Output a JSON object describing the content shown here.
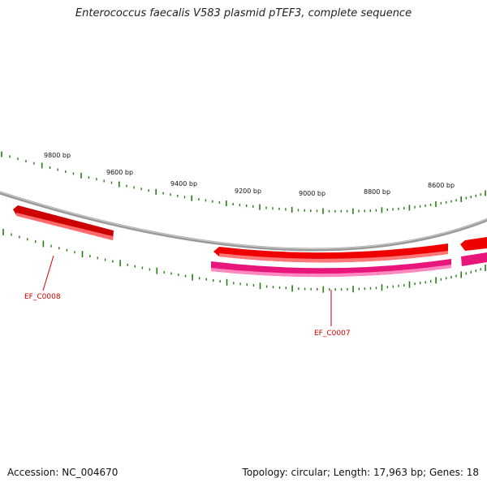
{
  "title": "Enterococcus faecalis V583 plasmid pTEF3, complete sequence",
  "footer": {
    "accession": "Accession: NC_004670",
    "summary": "Topology: circular; Length: 17,963 bp; Genes: 18"
  },
  "map": {
    "tick_labels": [
      "9800 bp",
      "9600 bp",
      "9400 bp",
      "9200 bp",
      "9000 bp",
      "8800 bp",
      "8600 bp"
    ],
    "gene_labels": [
      "EF_C0008",
      "EF_C0007"
    ],
    "colors": {
      "backbone": "#888888",
      "gene_red": "#ee0000",
      "gene_magenta": "#ee1188",
      "tick_green": "#2a7a1a",
      "label_red": "#cc0000"
    }
  }
}
